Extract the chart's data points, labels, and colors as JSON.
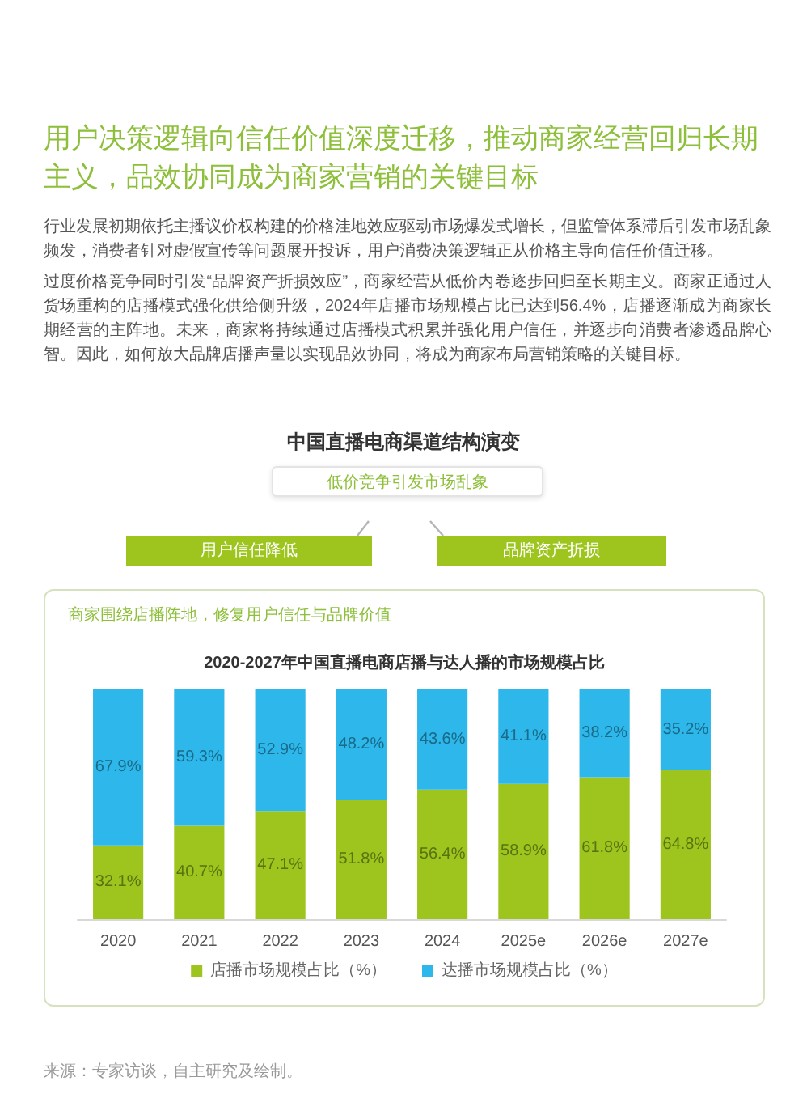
{
  "chart_data": {
    "type": "bar",
    "title": "2020-2027年中国直播电商店播与达人播的市场规模占比",
    "annotations": [
      "用户决策逻辑向信任价值深度迁移，推动商家经营回归长期主义，品效协同成为商家营销的关键目标",
      "行业发展初期依托主播议价权构建的价格洼地效应驱动市场爆发式增长，但监管体系滞后引发市场乱象频发，消费者针对虚假宣传等问题展开投诉，用户消费决策逻辑正从价格主导向信任价值迁移。",
      "过度价格竞争同时引发“品牌资产折损效应”，商家经营从低价内卷逐步回归至长期主义。商家正通过人货场重构的店播模式强化供给侧升级，2024年店播市场规模占比已达到56.4%，店播逐渐成为商家长期经营的主阵地。未来，商家将持续通过店播模式积累并强化用户信任，并逐步向消费者渗透品牌心智。因此，如何放大品牌店播声量以实现品效协同，将成为商家布局营销策略的关键目标。",
      "中国直播电商渠道结构演变",
      "低价竞争引发市场乱象",
      "用户信任降低",
      "品牌资产折损",
      "商家围绕店播阵地，修复用户信任与品牌价值",
      "来源：专家访谈，自主研究及绘制。"
    ],
    "categories": [
      "2020",
      "2021",
      "2022",
      "2023",
      "2024",
      "2025e",
      "2026e",
      "2027e"
    ],
    "series": [
      {
        "name": "店播市场规模占比（%）",
        "color": "#9dc51e",
        "values": [
          32.1,
          40.7,
          47.1,
          51.8,
          56.4,
          58.9,
          61.8,
          64.8
        ],
        "value_labels": [
          "32.1%",
          "40.7%",
          "47.1%",
          "51.8%",
          "56.4%",
          "58.9%",
          "61.8%",
          "64.8%"
        ]
      },
      {
        "name": "达播市场规模占比（%）",
        "color": "#2db7ea",
        "values": [
          67.9,
          59.3,
          52.9,
          48.2,
          43.6,
          41.1,
          38.2,
          35.2
        ],
        "value_labels": [
          "67.9%",
          "59.3%",
          "52.9%",
          "48.2%",
          "43.6%",
          "41.1%",
          "38.2%",
          "35.2%"
        ]
      }
    ],
    "stacked": true,
    "ylim": [
      0,
      100
    ],
    "tick_labels": "x",
    "legend": "bottom"
  }
}
